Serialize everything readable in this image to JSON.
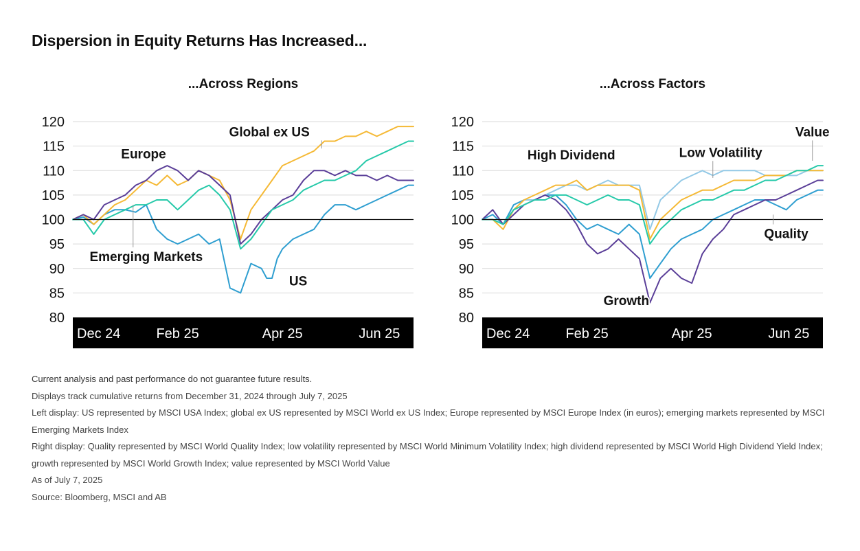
{
  "title": "Dispersion in Equity Returns Has Increased...",
  "colors": {
    "us": "#2e9ed0",
    "global_ex_us": "#f5b935",
    "europe": "#5a3e98",
    "emerging": "#25c9a9",
    "quality": "#2e9ed0",
    "low_volatility": "#93c9e6",
    "high_dividend": "#f5b935",
    "growth": "#5a3e98",
    "value": "#25c9a9",
    "axis_band": "#000000",
    "grid": "#d9d9d9"
  },
  "chart_data": [
    {
      "type": "line",
      "title": "...Across Regions",
      "xlabel": "",
      "ylabel": "",
      "ylim": [
        80,
        120
      ],
      "yticks": [
        80,
        85,
        90,
        95,
        100,
        105,
        110,
        115,
        120
      ],
      "xticks": [
        {
          "label": "Dec 24",
          "x": 0
        },
        {
          "label": "Feb 25",
          "x": 40
        },
        {
          "label": "Apr 25",
          "x": 80
        },
        {
          "label": "Jun 25",
          "x": 117
        }
      ],
      "xlim": [
        0,
        130
      ],
      "baseline": 100,
      "grid": true,
      "series": [
        {
          "name": "US",
          "color_key": "us",
          "x": [
            0,
            4,
            8,
            12,
            16,
            20,
            24,
            28,
            32,
            36,
            40,
            44,
            48,
            52,
            56,
            60,
            64,
            68,
            72,
            74,
            76,
            78,
            80,
            84,
            88,
            92,
            96,
            100,
            104,
            108,
            112,
            116,
            120,
            124,
            128,
            130
          ],
          "values": [
            100,
            100.5,
            99,
            101,
            102,
            102,
            101.5,
            103,
            98,
            96,
            95,
            96,
            97,
            95,
            96,
            86,
            85,
            91,
            90,
            88,
            88,
            92,
            94,
            96,
            97,
            98,
            101,
            103,
            103,
            102,
            103,
            104,
            105,
            106,
            107,
            107
          ]
        },
        {
          "name": "Global ex US",
          "color_key": "global_ex_us",
          "x": [
            0,
            4,
            8,
            12,
            16,
            20,
            24,
            28,
            32,
            36,
            40,
            44,
            48,
            52,
            56,
            60,
            64,
            68,
            72,
            76,
            80,
            84,
            88,
            92,
            96,
            100,
            104,
            108,
            112,
            116,
            120,
            124,
            128,
            130
          ],
          "values": [
            100,
            101,
            99,
            101,
            103,
            104,
            106,
            108,
            107,
            109,
            107,
            108,
            110,
            109,
            108,
            104,
            96,
            102,
            105,
            108,
            111,
            112,
            113,
            114,
            116,
            116,
            117,
            117,
            118,
            117,
            118,
            119,
            119,
            119
          ]
        },
        {
          "name": "Europe",
          "color_key": "europe",
          "x": [
            0,
            4,
            8,
            12,
            16,
            20,
            24,
            28,
            32,
            36,
            40,
            44,
            48,
            52,
            56,
            60,
            64,
            68,
            72,
            76,
            80,
            84,
            88,
            92,
            96,
            100,
            104,
            108,
            112,
            116,
            120,
            124,
            128,
            130
          ],
          "values": [
            100,
            101,
            100,
            103,
            104,
            105,
            107,
            108,
            110,
            111,
            110,
            108,
            110,
            109,
            107,
            105,
            95,
            97,
            100,
            102,
            104,
            105,
            108,
            110,
            110,
            109,
            110,
            109,
            109,
            108,
            109,
            108,
            108,
            108
          ]
        },
        {
          "name": "Emerging Markets",
          "color_key": "emerging",
          "x": [
            0,
            4,
            8,
            12,
            16,
            20,
            24,
            28,
            32,
            36,
            40,
            44,
            48,
            52,
            56,
            60,
            64,
            68,
            72,
            76,
            80,
            84,
            88,
            92,
            96,
            100,
            104,
            108,
            112,
            116,
            120,
            124,
            128,
            130
          ],
          "values": [
            100,
            100,
            97,
            100,
            101,
            102,
            103,
            103,
            104,
            104,
            102,
            104,
            106,
            107,
            105,
            102,
            94,
            96,
            99,
            102,
            103,
            104,
            106,
            107,
            108,
            108,
            109,
            110,
            112,
            113,
            114,
            115,
            116,
            116
          ]
        }
      ],
      "labels": [
        {
          "series": "Europe",
          "text": "Europe",
          "x": 27,
          "y": 112.5,
          "anchor": "middle"
        },
        {
          "series": "Global ex US",
          "text": "Global ex US",
          "x": 75,
          "y": 117,
          "anchor": "middle",
          "leader_to": [
            95,
            114.5
          ]
        },
        {
          "series": "Emerging Markets",
          "text": "Emerging Markets",
          "x": 28,
          "y": 91.5,
          "anchor": "middle",
          "leader_to": [
            23,
            103
          ]
        },
        {
          "series": "US",
          "text": "US",
          "x": 86,
          "y": 86.5,
          "anchor": "middle"
        }
      ]
    },
    {
      "type": "line",
      "title": "...Across Factors",
      "xlabel": "",
      "ylabel": "",
      "ylim": [
        80,
        120
      ],
      "yticks": [
        80,
        85,
        90,
        95,
        100,
        105,
        110,
        115,
        120
      ],
      "xticks": [
        {
          "label": "Dec 24",
          "x": 0
        },
        {
          "label": "Feb 25",
          "x": 40
        },
        {
          "label": "Apr 25",
          "x": 80
        },
        {
          "label": "Jun 25",
          "x": 117
        }
      ],
      "xlim": [
        0,
        130
      ],
      "baseline": 100,
      "grid": true,
      "series": [
        {
          "name": "Quality",
          "color_key": "quality",
          "x": [
            0,
            4,
            8,
            12,
            16,
            20,
            24,
            28,
            32,
            36,
            40,
            44,
            48,
            52,
            56,
            60,
            64,
            68,
            72,
            76,
            80,
            84,
            88,
            92,
            96,
            100,
            104,
            108,
            112,
            116,
            120,
            124,
            128,
            130
          ],
          "values": [
            100,
            101,
            99,
            103,
            104,
            104,
            105,
            105,
            103,
            100,
            98,
            99,
            98,
            97,
            99,
            97,
            88,
            91,
            94,
            96,
            97,
            98,
            100,
            101,
            102,
            103,
            104,
            104,
            103,
            102,
            104,
            105,
            106,
            106
          ]
        },
        {
          "name": "Low Volatility",
          "color_key": "low_volatility",
          "x": [
            0,
            4,
            8,
            12,
            16,
            20,
            24,
            28,
            32,
            36,
            40,
            44,
            48,
            52,
            56,
            60,
            64,
            68,
            72,
            76,
            80,
            84,
            88,
            92,
            96,
            100,
            104,
            108,
            112,
            116,
            120,
            124,
            128,
            130
          ],
          "values": [
            100,
            100,
            99,
            102,
            104,
            104,
            105,
            106,
            107,
            107,
            106,
            107,
            108,
            107,
            107,
            107,
            98,
            104,
            106,
            108,
            109,
            110,
            109,
            110,
            110,
            110,
            110,
            109,
            109,
            109,
            109,
            110,
            110,
            110
          ]
        },
        {
          "name": "High Dividend",
          "color_key": "high_dividend",
          "x": [
            0,
            4,
            8,
            12,
            16,
            20,
            24,
            28,
            32,
            36,
            40,
            44,
            48,
            52,
            56,
            60,
            64,
            68,
            72,
            76,
            80,
            84,
            88,
            92,
            96,
            100,
            104,
            108,
            112,
            116,
            120,
            124,
            128,
            130
          ],
          "values": [
            100,
            100,
            98,
            102,
            104,
            105,
            106,
            107,
            107,
            108,
            106,
            107,
            107,
            107,
            107,
            106,
            96,
            100,
            102,
            104,
            105,
            106,
            106,
            107,
            108,
            108,
            108,
            109,
            109,
            109,
            110,
            110,
            110,
            110
          ]
        },
        {
          "name": "Growth",
          "color_key": "growth",
          "x": [
            0,
            4,
            8,
            12,
            16,
            20,
            24,
            28,
            32,
            36,
            40,
            44,
            48,
            52,
            56,
            60,
            64,
            68,
            72,
            76,
            80,
            84,
            88,
            92,
            96,
            100,
            104,
            108,
            112,
            116,
            120,
            124,
            128,
            130
          ],
          "values": [
            100,
            102,
            99,
            101,
            103,
            104,
            105,
            104,
            102,
            99,
            95,
            93,
            94,
            96,
            94,
            92,
            83,
            88,
            90,
            88,
            87,
            93,
            96,
            98,
            101,
            102,
            103,
            104,
            104,
            105,
            106,
            107,
            108,
            108
          ]
        },
        {
          "name": "Value",
          "color_key": "value",
          "x": [
            0,
            4,
            8,
            12,
            16,
            20,
            24,
            28,
            32,
            36,
            40,
            44,
            48,
            52,
            56,
            60,
            64,
            68,
            72,
            76,
            80,
            84,
            88,
            92,
            96,
            100,
            104,
            108,
            112,
            116,
            120,
            124,
            128,
            130
          ],
          "values": [
            100,
            100,
            99,
            102,
            103,
            104,
            104,
            105,
            105,
            104,
            103,
            104,
            105,
            104,
            104,
            103,
            95,
            98,
            100,
            102,
            103,
            104,
            104,
            105,
            106,
            106,
            107,
            108,
            108,
            109,
            110,
            110,
            111,
            111
          ]
        }
      ],
      "labels": [
        {
          "series": "High Dividend",
          "text": "High Dividend",
          "x": 34,
          "y": 112.3,
          "anchor": "middle"
        },
        {
          "series": "Low Volatility",
          "text": "Low Volatility",
          "x": 91,
          "y": 112.8,
          "anchor": "middle",
          "leader_to": [
            88,
            108.5
          ]
        },
        {
          "series": "Value",
          "text": "Value",
          "x": 126,
          "y": 117,
          "anchor": "middle",
          "leader_to": [
            126,
            112
          ]
        },
        {
          "series": "Quality",
          "text": "Quality",
          "x": 116,
          "y": 96.2,
          "anchor": "middle",
          "leader_to": [
            111,
            101
          ]
        },
        {
          "series": "Growth",
          "text": "Growth",
          "x": 55,
          "y": 82.5,
          "anchor": "middle"
        }
      ]
    }
  ],
  "notes": {
    "disclaimer": "Current analysis and past performance do not guarantee future results.",
    "period": "Displays track cumulative returns from December 31, 2024 through July 7, 2025",
    "left_display": "Left display: US represented by MSCI USA Index; global ex US represented by MSCI World ex US Index; Europe represented by MSCI Europe Index (in euros); emerging markets represented by MSCI Emerging Markets Index",
    "right_display": "Right display: Quality represented by MSCI World Quality Index; low volatility represented by MSCI World Minimum Volatility Index; high dividend represented by MSCI World High Dividend Yield Index; growth represented by MSCI World Growth Index; value represented by MSCI World Value",
    "as_of": "As of July 7, 2025",
    "source": "Source: Bloomberg, MSCI and AB"
  }
}
